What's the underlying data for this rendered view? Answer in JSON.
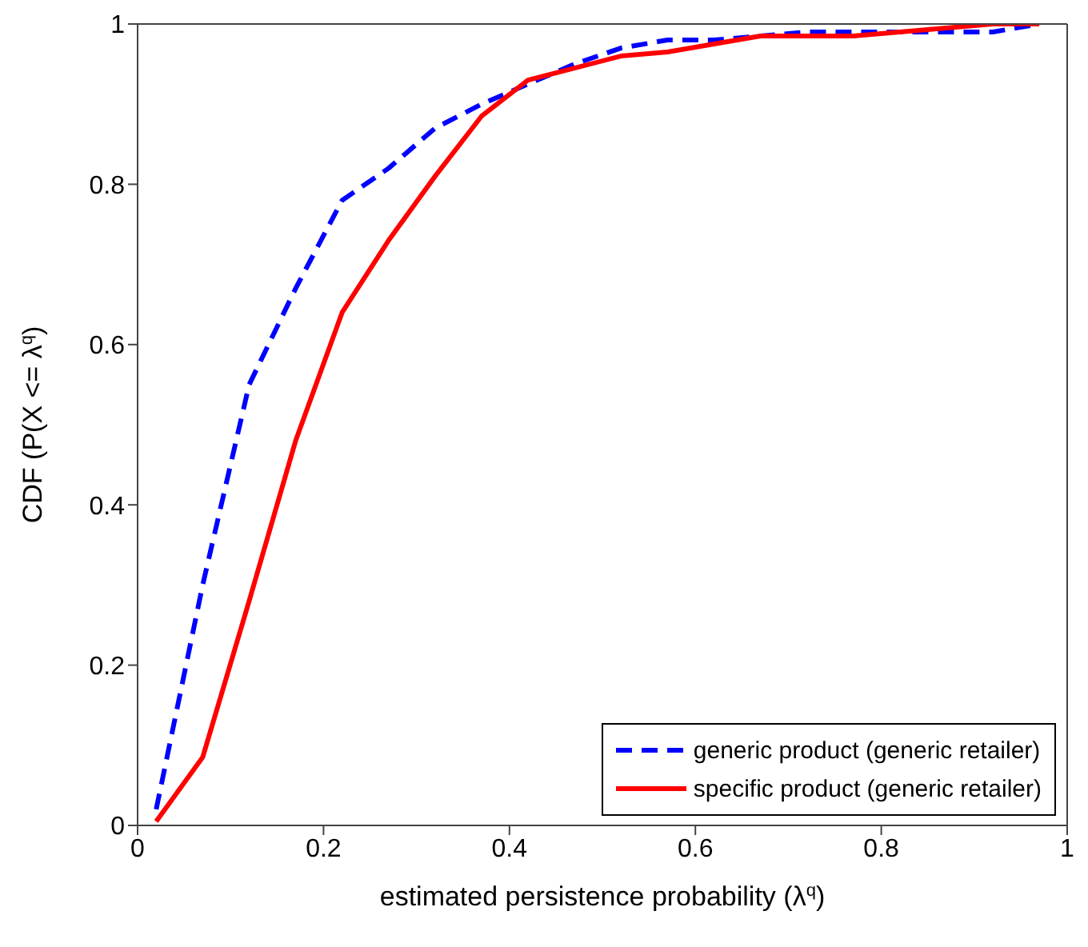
{
  "chart_data": {
    "type": "line",
    "xlabel": "estimated persistence probability (λ$^{q}$)",
    "ylabel": "CDF (P(X <= λ$^{q}$)",
    "xlim": [
      0,
      1
    ],
    "ylim": [
      0,
      1
    ],
    "xticks": [
      0,
      0.2,
      0.4,
      0.6,
      0.8,
      1
    ],
    "yticks": [
      0,
      0.2,
      0.4,
      0.6,
      0.8,
      1
    ],
    "legend": "bottom right",
    "marker": "none",
    "series": [
      {
        "name": "generic product (generic retailer)",
        "color": "#0000ff",
        "line_style": "dashed",
        "x": [
          0.02,
          0.07,
          0.12,
          0.17,
          0.22,
          0.27,
          0.32,
          0.37,
          0.42,
          0.47,
          0.52,
          0.57,
          0.62,
          0.67,
          0.72,
          0.77,
          0.82,
          0.87,
          0.92,
          0.97
        ],
        "values": [
          0.02,
          0.3,
          0.55,
          0.67,
          0.78,
          0.82,
          0.87,
          0.9,
          0.925,
          0.95,
          0.97,
          0.98,
          0.98,
          0.985,
          0.99,
          0.99,
          0.99,
          0.99,
          0.99,
          1.0
        ]
      },
      {
        "name": "specific product (generic retailer)",
        "color": "#ff0000",
        "line_style": "solid",
        "x": [
          0.02,
          0.07,
          0.12,
          0.17,
          0.22,
          0.27,
          0.32,
          0.37,
          0.42,
          0.47,
          0.52,
          0.57,
          0.62,
          0.67,
          0.72,
          0.77,
          0.82,
          0.87,
          0.92,
          0.97
        ],
        "values": [
          0.005,
          0.085,
          0.28,
          0.48,
          0.64,
          0.73,
          0.81,
          0.885,
          0.93,
          0.945,
          0.96,
          0.965,
          0.975,
          0.985,
          0.985,
          0.985,
          0.99,
          0.995,
          1.0,
          1.0
        ]
      }
    ]
  }
}
